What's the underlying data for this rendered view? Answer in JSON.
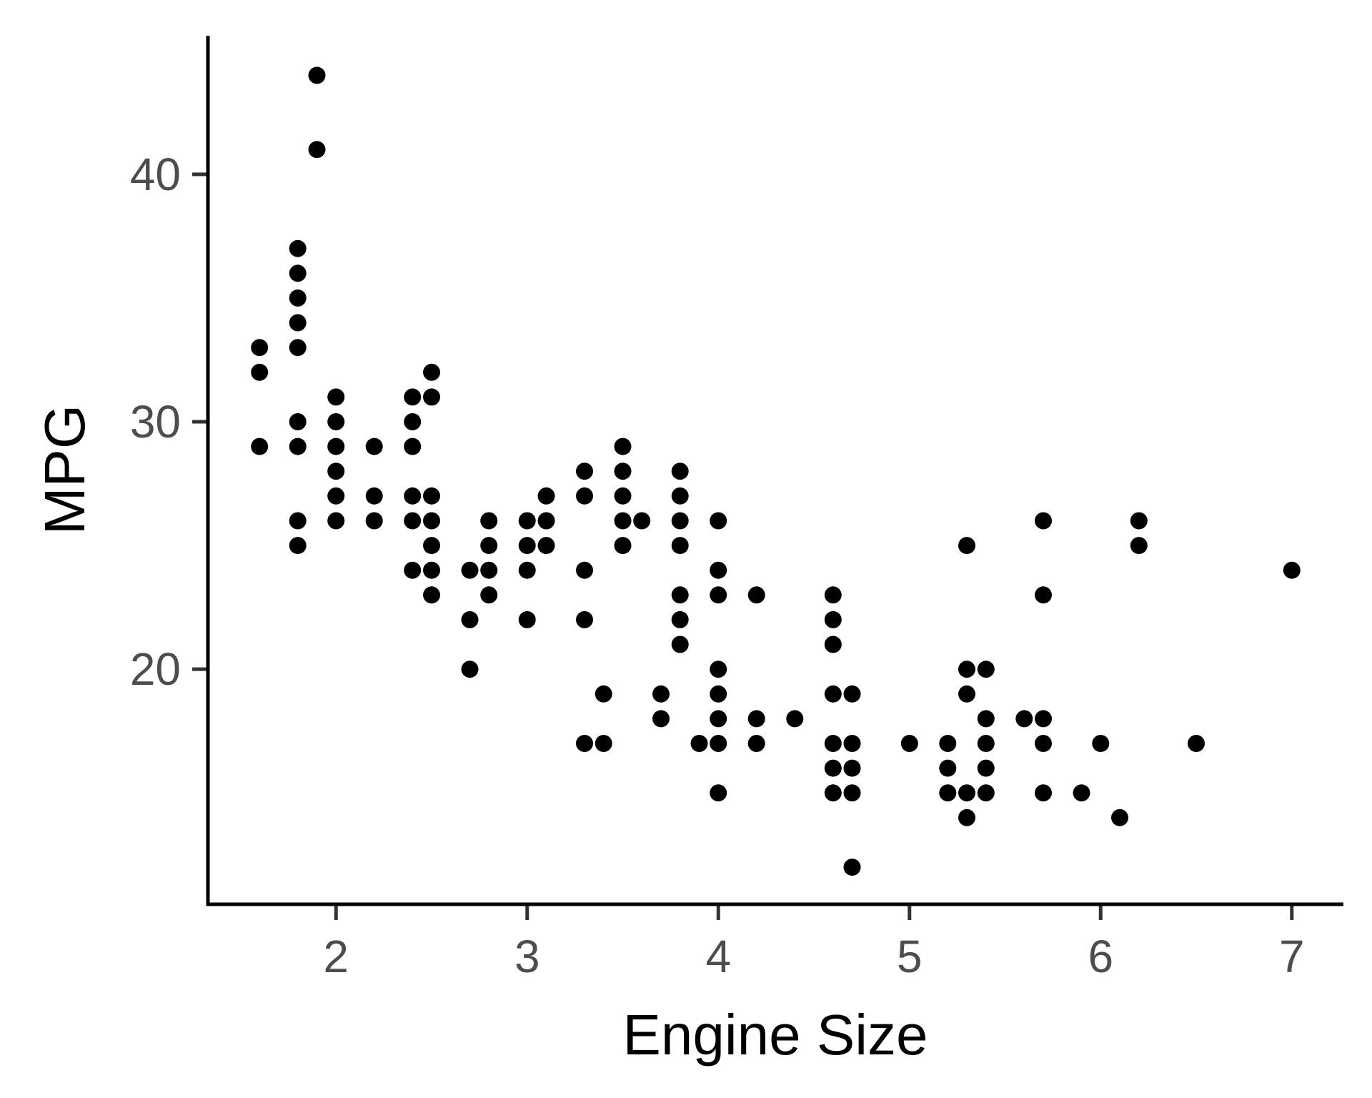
{
  "chart_data": {
    "type": "scatter",
    "title": "",
    "xlabel": "Engine Size",
    "ylabel": "MPG",
    "xlim": [
      1.33,
      7.27
    ],
    "ylim": [
      10.5,
      45.6
    ],
    "x_ticks": [
      2,
      3,
      4,
      5,
      6,
      7
    ],
    "y_ticks": [
      20,
      30,
      40
    ],
    "grid": false,
    "legend": "none",
    "point_color": "#000000",
    "points": [
      {
        "x": 1.6,
        "y": 33
      },
      {
        "x": 1.6,
        "y": 32
      },
      {
        "x": 1.6,
        "y": 29
      },
      {
        "x": 1.8,
        "y": 37
      },
      {
        "x": 1.8,
        "y": 36
      },
      {
        "x": 1.8,
        "y": 35
      },
      {
        "x": 1.8,
        "y": 34
      },
      {
        "x": 1.8,
        "y": 33
      },
      {
        "x": 1.8,
        "y": 30
      },
      {
        "x": 1.8,
        "y": 29
      },
      {
        "x": 1.8,
        "y": 26
      },
      {
        "x": 1.8,
        "y": 25
      },
      {
        "x": 1.9,
        "y": 44
      },
      {
        "x": 1.9,
        "y": 41
      },
      {
        "x": 2.0,
        "y": 31
      },
      {
        "x": 2.0,
        "y": 30
      },
      {
        "x": 2.0,
        "y": 29
      },
      {
        "x": 2.0,
        "y": 28
      },
      {
        "x": 2.0,
        "y": 27
      },
      {
        "x": 2.0,
        "y": 26
      },
      {
        "x": 2.2,
        "y": 29
      },
      {
        "x": 2.2,
        "y": 27
      },
      {
        "x": 2.2,
        "y": 26
      },
      {
        "x": 2.4,
        "y": 31
      },
      {
        "x": 2.4,
        "y": 30
      },
      {
        "x": 2.4,
        "y": 29
      },
      {
        "x": 2.4,
        "y": 27
      },
      {
        "x": 2.4,
        "y": 26
      },
      {
        "x": 2.4,
        "y": 24
      },
      {
        "x": 2.5,
        "y": 32
      },
      {
        "x": 2.5,
        "y": 31
      },
      {
        "x": 2.5,
        "y": 27
      },
      {
        "x": 2.5,
        "y": 26
      },
      {
        "x": 2.5,
        "y": 25
      },
      {
        "x": 2.5,
        "y": 24
      },
      {
        "x": 2.5,
        "y": 23
      },
      {
        "x": 2.7,
        "y": 24
      },
      {
        "x": 2.7,
        "y": 22
      },
      {
        "x": 2.7,
        "y": 20
      },
      {
        "x": 2.8,
        "y": 26
      },
      {
        "x": 2.8,
        "y": 25
      },
      {
        "x": 2.8,
        "y": 24
      },
      {
        "x": 2.8,
        "y": 23
      },
      {
        "x": 3.0,
        "y": 26
      },
      {
        "x": 3.0,
        "y": 25
      },
      {
        "x": 3.0,
        "y": 24
      },
      {
        "x": 3.0,
        "y": 22
      },
      {
        "x": 3.1,
        "y": 27
      },
      {
        "x": 3.1,
        "y": 26
      },
      {
        "x": 3.1,
        "y": 25
      },
      {
        "x": 3.3,
        "y": 28
      },
      {
        "x": 3.3,
        "y": 27
      },
      {
        "x": 3.3,
        "y": 24
      },
      {
        "x": 3.3,
        "y": 22
      },
      {
        "x": 3.3,
        "y": 17
      },
      {
        "x": 3.4,
        "y": 19
      },
      {
        "x": 3.4,
        "y": 17
      },
      {
        "x": 3.5,
        "y": 29
      },
      {
        "x": 3.5,
        "y": 28
      },
      {
        "x": 3.5,
        "y": 27
      },
      {
        "x": 3.5,
        "y": 26
      },
      {
        "x": 3.5,
        "y": 25
      },
      {
        "x": 3.6,
        "y": 26
      },
      {
        "x": 3.7,
        "y": 19
      },
      {
        "x": 3.7,
        "y": 18
      },
      {
        "x": 3.8,
        "y": 28
      },
      {
        "x": 3.8,
        "y": 27
      },
      {
        "x": 3.8,
        "y": 26
      },
      {
        "x": 3.8,
        "y": 25
      },
      {
        "x": 3.8,
        "y": 23
      },
      {
        "x": 3.8,
        "y": 22
      },
      {
        "x": 3.8,
        "y": 21
      },
      {
        "x": 3.9,
        "y": 17
      },
      {
        "x": 4.0,
        "y": 26
      },
      {
        "x": 4.0,
        "y": 24
      },
      {
        "x": 4.0,
        "y": 23
      },
      {
        "x": 4.0,
        "y": 20
      },
      {
        "x": 4.0,
        "y": 19
      },
      {
        "x": 4.0,
        "y": 18
      },
      {
        "x": 4.0,
        "y": 17
      },
      {
        "x": 4.0,
        "y": 15
      },
      {
        "x": 4.2,
        "y": 23
      },
      {
        "x": 4.2,
        "y": 18
      },
      {
        "x": 4.2,
        "y": 17
      },
      {
        "x": 4.4,
        "y": 18
      },
      {
        "x": 4.6,
        "y": 23
      },
      {
        "x": 4.6,
        "y": 22
      },
      {
        "x": 4.6,
        "y": 21
      },
      {
        "x": 4.6,
        "y": 19
      },
      {
        "x": 4.6,
        "y": 17
      },
      {
        "x": 4.6,
        "y": 16
      },
      {
        "x": 4.6,
        "y": 15
      },
      {
        "x": 4.7,
        "y": 19
      },
      {
        "x": 4.7,
        "y": 17
      },
      {
        "x": 4.7,
        "y": 16
      },
      {
        "x": 4.7,
        "y": 15
      },
      {
        "x": 4.7,
        "y": 12
      },
      {
        "x": 5.0,
        "y": 17
      },
      {
        "x": 5.2,
        "y": 17
      },
      {
        "x": 5.2,
        "y": 16
      },
      {
        "x": 5.2,
        "y": 15
      },
      {
        "x": 5.3,
        "y": 25
      },
      {
        "x": 5.3,
        "y": 20
      },
      {
        "x": 5.3,
        "y": 19
      },
      {
        "x": 5.3,
        "y": 15
      },
      {
        "x": 5.3,
        "y": 14
      },
      {
        "x": 5.4,
        "y": 20
      },
      {
        "x": 5.4,
        "y": 18
      },
      {
        "x": 5.4,
        "y": 17
      },
      {
        "x": 5.4,
        "y": 16
      },
      {
        "x": 5.4,
        "y": 15
      },
      {
        "x": 5.6,
        "y": 18
      },
      {
        "x": 5.7,
        "y": 26
      },
      {
        "x": 5.7,
        "y": 23
      },
      {
        "x": 5.7,
        "y": 18
      },
      {
        "x": 5.7,
        "y": 17
      },
      {
        "x": 5.7,
        "y": 15
      },
      {
        "x": 5.9,
        "y": 15
      },
      {
        "x": 6.0,
        "y": 17
      },
      {
        "x": 6.1,
        "y": 14
      },
      {
        "x": 6.2,
        "y": 26
      },
      {
        "x": 6.2,
        "y": 25
      },
      {
        "x": 6.5,
        "y": 17
      },
      {
        "x": 7.0,
        "y": 24
      }
    ]
  }
}
